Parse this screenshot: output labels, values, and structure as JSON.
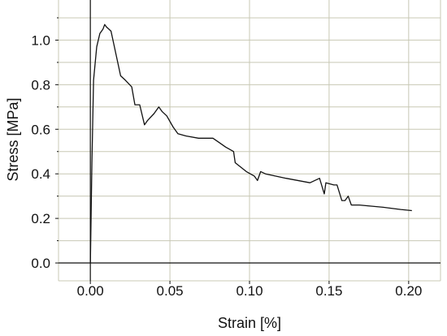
{
  "chart_data": {
    "type": "line",
    "title": "",
    "xlabel": "Strain [%]",
    "ylabel": "Stress [MPa]",
    "xlim": [
      -0.02,
      0.22
    ],
    "ylim": [
      -0.08,
      1.18
    ],
    "x_ticks": [
      0.0,
      0.05,
      0.1,
      0.15,
      0.2
    ],
    "x_tick_labels": [
      "0.00",
      "0.05",
      "0.10",
      "0.15",
      "0.20"
    ],
    "y_ticks": [
      0.0,
      0.2,
      0.4,
      0.6,
      0.8,
      1.0
    ],
    "y_tick_labels": [
      "0.0",
      "0.2",
      "0.4",
      "0.6",
      "0.8",
      "1.0"
    ],
    "grid": true,
    "legend": "none",
    "colors": {
      "line": "#111111",
      "grid": "#c8c8b4",
      "axis": "#111111",
      "background": "#ffffff"
    },
    "series": [
      {
        "x": [
          0.0,
          0.001,
          0.002,
          0.004,
          0.006,
          0.008,
          0.009,
          0.01,
          0.013,
          0.016,
          0.019,
          0.022,
          0.026,
          0.028,
          0.031,
          0.034,
          0.036,
          0.04,
          0.043,
          0.045,
          0.048,
          0.052,
          0.055,
          0.06,
          0.068,
          0.077,
          0.081,
          0.085,
          0.09,
          0.091,
          0.098,
          0.103,
          0.105,
          0.107,
          0.11,
          0.123,
          0.138,
          0.144,
          0.147,
          0.148,
          0.153,
          0.155,
          0.158,
          0.16,
          0.162,
          0.164,
          0.169,
          0.184,
          0.195,
          0.202
        ],
        "y": [
          0.0,
          0.45,
          0.82,
          0.97,
          1.03,
          1.05,
          1.07,
          1.06,
          1.04,
          0.94,
          0.84,
          0.82,
          0.79,
          0.71,
          0.71,
          0.62,
          0.64,
          0.67,
          0.7,
          0.68,
          0.66,
          0.61,
          0.58,
          0.57,
          0.56,
          0.56,
          0.54,
          0.52,
          0.5,
          0.45,
          0.41,
          0.39,
          0.37,
          0.41,
          0.4,
          0.38,
          0.36,
          0.38,
          0.31,
          0.36,
          0.35,
          0.35,
          0.28,
          0.28,
          0.3,
          0.26,
          0.26,
          0.25,
          0.24,
          0.235
        ]
      }
    ]
  }
}
